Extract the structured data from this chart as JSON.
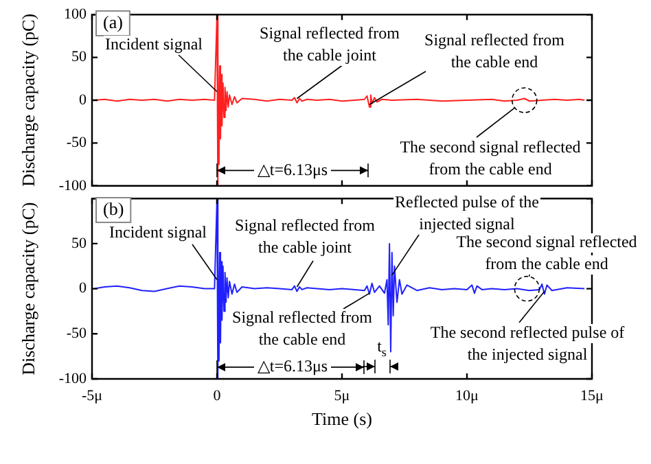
{
  "chart_data": [
    {
      "type": "line",
      "ylabel": "Discharge capacity (pC)",
      "xlim": [
        -5,
        15
      ],
      "ylim": [
        -100,
        100
      ],
      "xticks": [
        -5,
        0,
        5,
        10,
        15
      ],
      "yticks": [
        -100,
        -50,
        0,
        50,
        100
      ],
      "tick_labels": "y",
      "grid": false,
      "legend": false,
      "marker": "none",
      "series": [
        {
          "color": "#ff2020",
          "x": [
            -4.9,
            -4.5,
            -4,
            -3.5,
            -3,
            -2.5,
            -2,
            -1.5,
            -1,
            -0.5,
            -0.1,
            0,
            0.02,
            0.05,
            0.08,
            0.11,
            0.14,
            0.17,
            0.2,
            0.24,
            0.28,
            0.32,
            0.36,
            0.4,
            0.45,
            0.5,
            0.6,
            0.7,
            0.8,
            1,
            1.5,
            2,
            2.5,
            3,
            3.1,
            3.2,
            3.3,
            3.4,
            3.6,
            4,
            4.5,
            5,
            5.5,
            5.9,
            6,
            6.1,
            6.15,
            6.2,
            6.3,
            6.4,
            6.6,
            7,
            8,
            9,
            10,
            11,
            11.5,
            12,
            12.3,
            12.5,
            13,
            13.5,
            14,
            14.5,
            14.7
          ],
          "values": [
            0,
            1,
            -1,
            1,
            0,
            1,
            -1,
            1,
            0,
            1,
            0,
            100,
            -100,
            50,
            -75,
            40,
            -45,
            30,
            -30,
            20,
            -20,
            15,
            -12,
            10,
            -8,
            6,
            -5,
            4,
            -3,
            2,
            1,
            -1,
            1,
            0,
            3,
            -3,
            2,
            -1,
            1,
            0,
            1,
            -1,
            0,
            1,
            5,
            -8,
            6,
            -4,
            3,
            -2,
            1,
            0,
            1,
            -1,
            0,
            1,
            -1,
            0,
            2,
            -1,
            0,
            1,
            0,
            1,
            0
          ]
        }
      ],
      "annotations": [
        "(a)",
        {
          "text": "Incident signal",
          "x": 0,
          "y": 10
        },
        {
          "text": "Signal reflected from the cable joint",
          "x": 3.2,
          "y": 2
        },
        {
          "text": "Signal reflected from the cable end",
          "x": 6.1,
          "y": -5
        },
        {
          "text": "The second signal reflected from the cable end",
          "x": 12.3,
          "y": 0
        },
        {
          "text": "△t=6.13μs",
          "x": 0,
          "y": -82
        }
      ]
    },
    {
      "type": "line",
      "xlabel": "Time (s)",
      "ylabel": "Discharge capacity (pC)",
      "xlim": [
        -5,
        15
      ],
      "ylim": [
        -100,
        100
      ],
      "xticks": [
        {
          "value": -5,
          "label": "-5μ"
        },
        0,
        {
          "value": 5,
          "label": "5μ"
        },
        {
          "value": 10,
          "label": "10μ"
        },
        {
          "value": 15,
          "label": "15μ"
        }
      ],
      "yticks": [
        -100,
        -50,
        0,
        50,
        {
          "value": 100,
          "label": null
        }
      ],
      "grid": false,
      "legend": false,
      "marker": "none",
      "series": [
        {
          "color": "#2020ff",
          "x": [
            -4.9,
            -4.5,
            -4,
            -3.5,
            -3,
            -2.5,
            -2,
            -1.5,
            -1,
            -0.5,
            -0.1,
            0,
            0.02,
            0.05,
            0.08,
            0.11,
            0.14,
            0.17,
            0.2,
            0.24,
            0.28,
            0.32,
            0.36,
            0.4,
            0.45,
            0.5,
            0.6,
            0.7,
            0.8,
            1,
            1.5,
            2,
            2.5,
            3,
            3.1,
            3.2,
            3.3,
            3.4,
            3.6,
            4,
            4.5,
            5,
            5.5,
            5.9,
            6,
            6.1,
            6.2,
            6.3,
            6.5,
            6.7,
            6.8,
            6.85,
            6.9,
            6.95,
            7,
            7.05,
            7.1,
            7.2,
            7.3,
            7.4,
            7.6,
            8,
            8.5,
            9,
            9.5,
            10,
            10.2,
            10.3,
            10.4,
            10.6,
            11,
            11.5,
            12,
            12.5,
            12.9,
            13,
            13.1,
            13.2,
            13.4,
            14,
            14.7
          ],
          "values": [
            0,
            2,
            3,
            1,
            -2,
            -3,
            0,
            3,
            2,
            0,
            0,
            100,
            -100,
            45,
            -80,
            40,
            -60,
            30,
            -35,
            25,
            -25,
            18,
            -15,
            12,
            -10,
            8,
            -6,
            5,
            -4,
            2,
            0,
            1,
            0,
            -1,
            3,
            -3,
            2,
            -1,
            1,
            0,
            -1,
            0,
            -1,
            -2,
            3,
            -6,
            6,
            -4,
            3,
            -5,
            10,
            -40,
            50,
            -70,
            40,
            -30,
            25,
            -15,
            10,
            -6,
            4,
            -2,
            1,
            -1,
            0,
            -1,
            4,
            -5,
            3,
            -1,
            0,
            -1,
            0,
            -2,
            -1,
            5,
            -6,
            4,
            -2,
            1,
            0
          ]
        }
      ],
      "annotations": [
        "(b)",
        {
          "text": "Incident signal",
          "x": 0,
          "y": 10
        },
        {
          "text": "Signal reflected from the cable joint",
          "x": 3.2,
          "y": 2
        },
        {
          "text": "Reflected pulse of the injected signal",
          "x": 7,
          "y": 15
        },
        {
          "text": "The second signal reflected from the cable end",
          "x": 12.4,
          "y": 0
        },
        {
          "text": "Signal reflected from the cable end",
          "x": 6.1,
          "y": -5
        },
        {
          "text": "The second reflected pulse of the injected signal",
          "x": 13.1,
          "y": -3
        },
        {
          "text": "△t=6.13μs",
          "x": 0,
          "y": -87
        },
        "t$_{s}$"
      ]
    }
  ]
}
